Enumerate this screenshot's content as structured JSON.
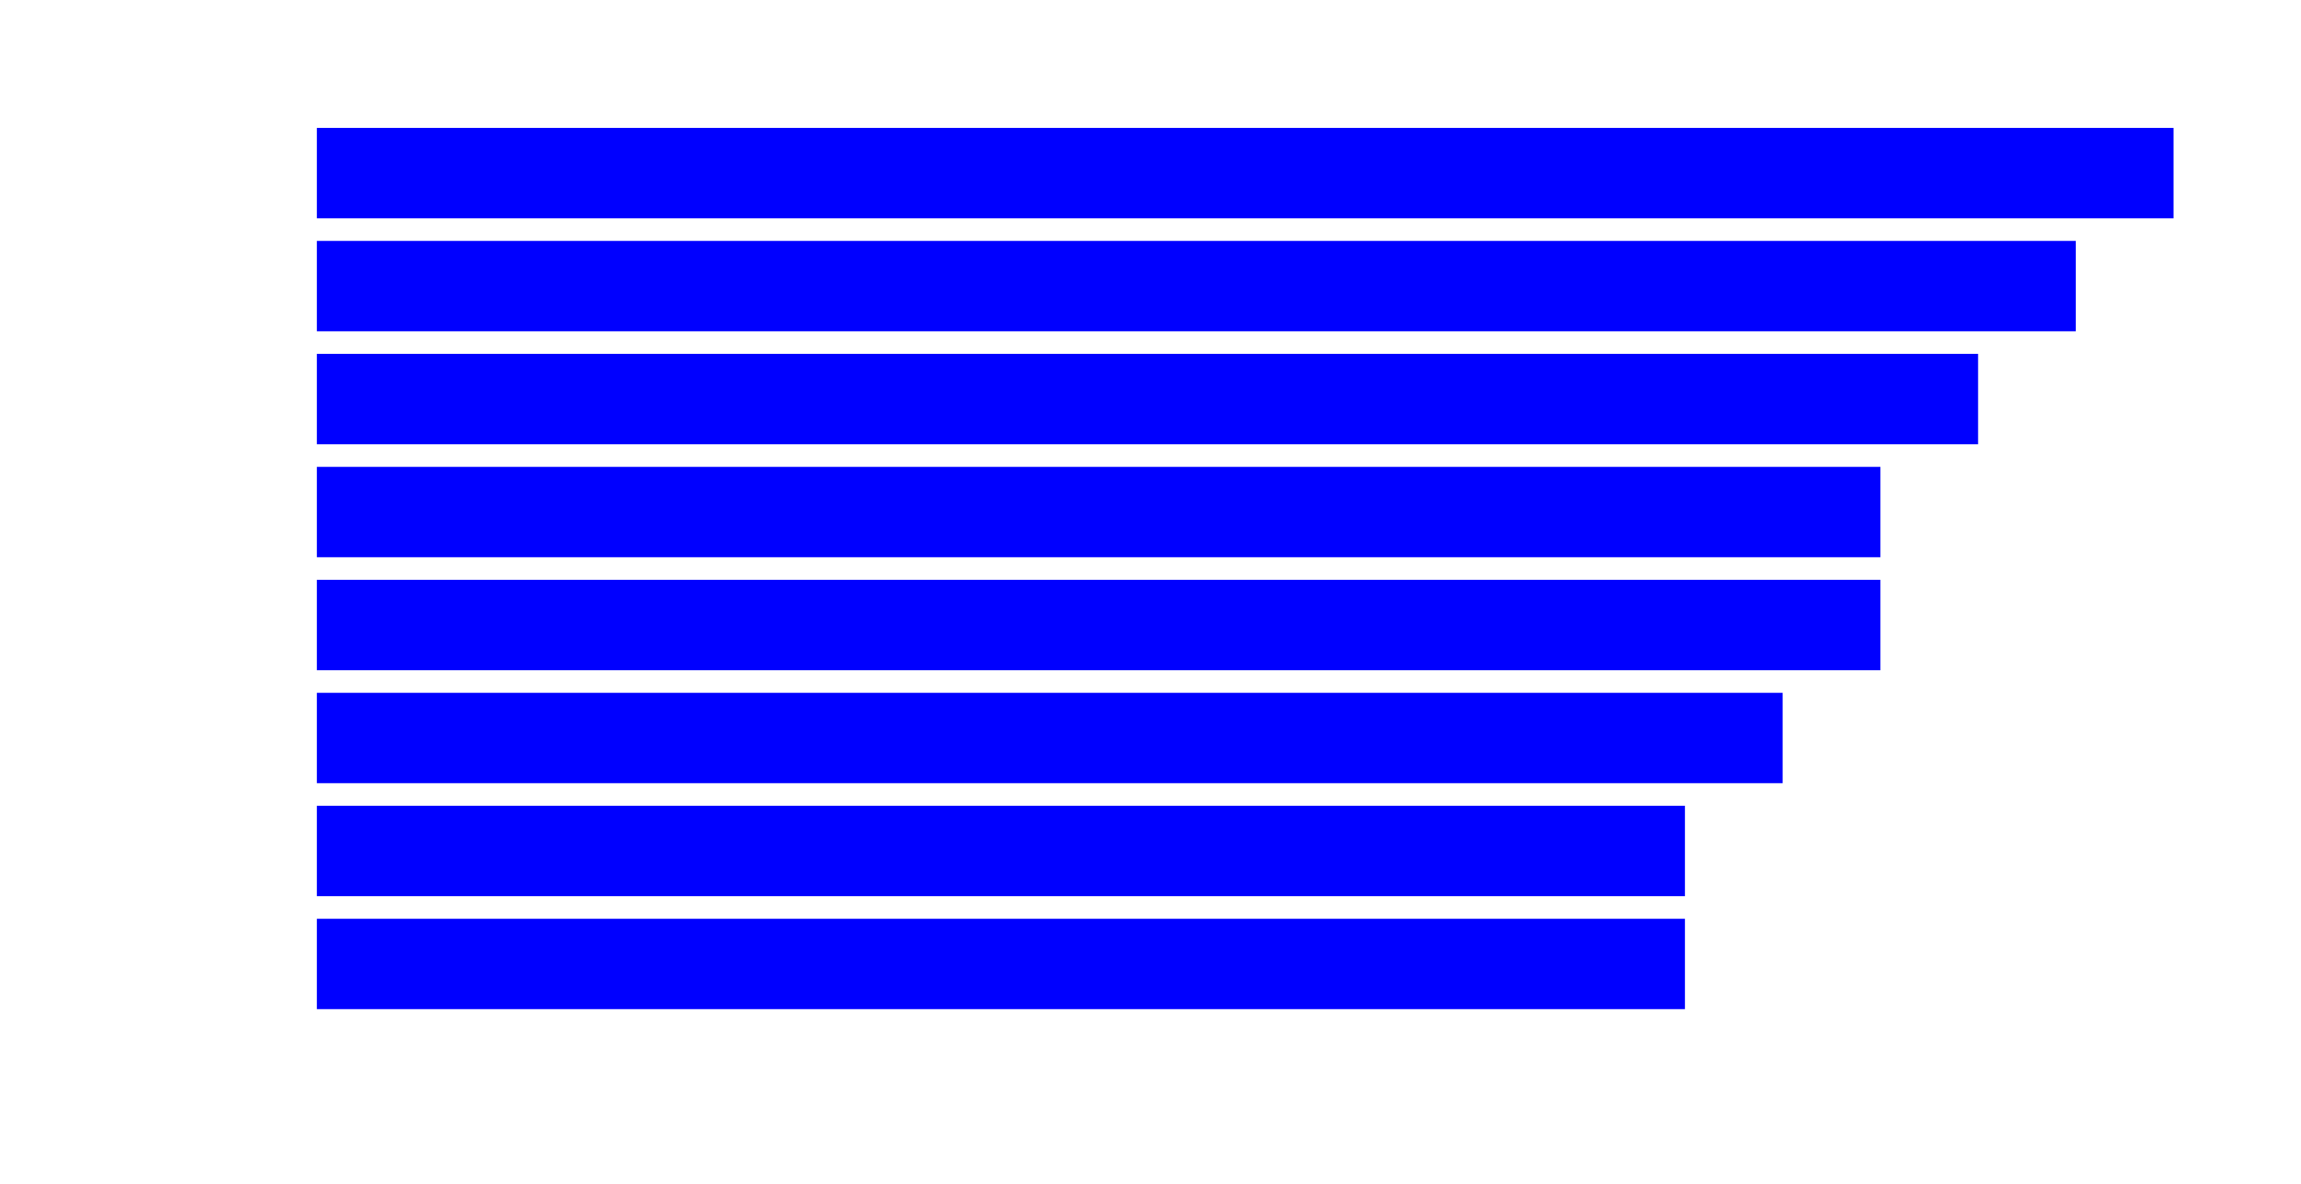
{
  "chart_data": {
    "type": "bar",
    "orientation": "horizontal",
    "values": [
      19,
      18,
      17,
      16,
      16,
      15,
      14,
      14
    ],
    "xlim": [
      0,
      20
    ],
    "grid": false,
    "legend": "none",
    "bar_color": "#0000ff"
  }
}
